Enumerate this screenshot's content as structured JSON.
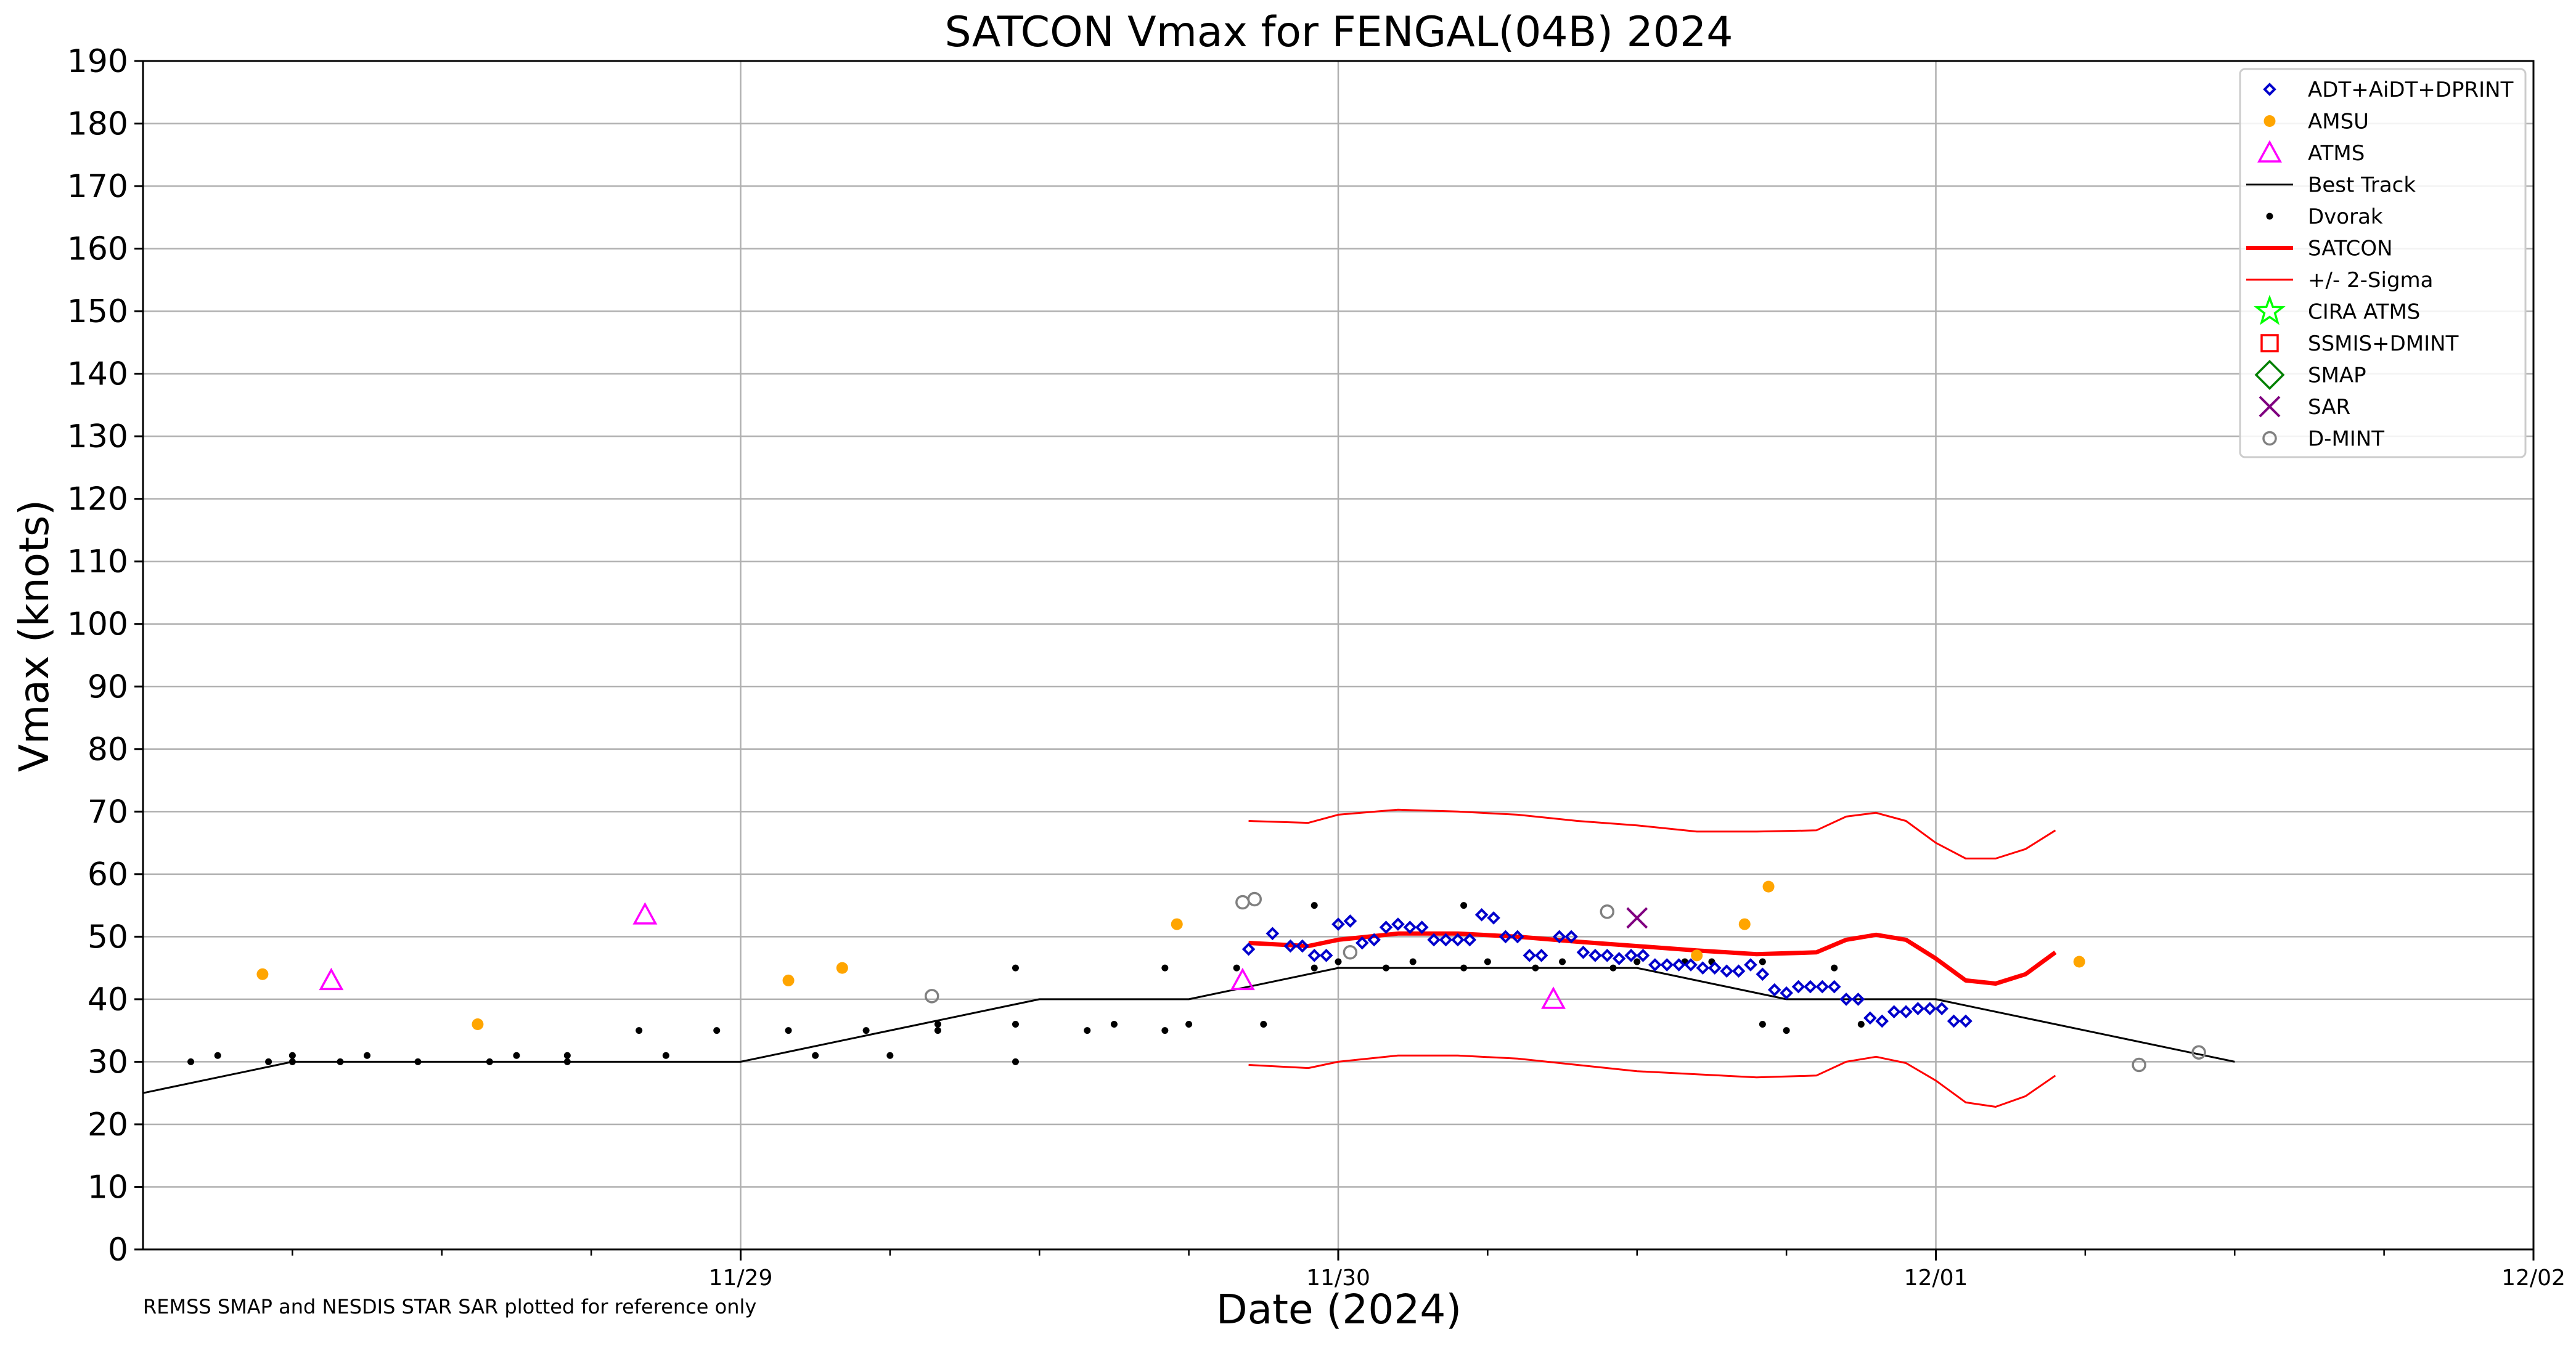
{
  "chart_data": {
    "type": "scatter",
    "title": "SATCON Vmax for FENGAL(04B) 2024",
    "xlabel": "Date (2024)",
    "ylabel": "Vmax (knots)",
    "footnote": "REMSS SMAP and NESDIS STAR SAR plotted for reference only",
    "x_unit": "days since 2024-11-28 00:00 UTC",
    "xlim": [
      0,
      4
    ],
    "ylim": [
      0,
      190
    ],
    "y_ticks": [
      0,
      10,
      20,
      30,
      40,
      50,
      60,
      70,
      80,
      90,
      100,
      110,
      120,
      130,
      140,
      150,
      160,
      170,
      180,
      190
    ],
    "y_tick_labels": [
      "0",
      "10",
      "20",
      "30",
      "40",
      "50",
      "60",
      "70",
      "80",
      "90",
      "100",
      "110",
      "120",
      "130",
      "140",
      "150",
      "160",
      "170",
      "180",
      "190"
    ],
    "x_major_ticks": [
      1,
      2,
      3,
      4
    ],
    "x_tick_labels": [
      "11/29",
      "11/30",
      "12/01",
      "12/02"
    ],
    "x_minor_ticks": [
      0.25,
      0.5,
      0.75,
      1.25,
      1.5,
      1.75,
      2.25,
      2.5,
      2.75,
      3.25,
      3.5,
      3.75
    ],
    "grid": true,
    "legend_position": "top-right",
    "legend": [
      {
        "label": "ADT+AiDT+DPRINT",
        "marker": "diamond-small",
        "color": "#0000cc"
      },
      {
        "label": "AMSU",
        "marker": "dot",
        "color": "#ffa500"
      },
      {
        "label": "ATMS",
        "marker": "triangle",
        "color": "#ff00ff"
      },
      {
        "label": "Best Track",
        "marker": "line",
        "color": "#000000"
      },
      {
        "label": "Dvorak",
        "marker": "dot-small",
        "color": "#000000"
      },
      {
        "label": "SATCON",
        "marker": "line-thick",
        "color": "#ff0000"
      },
      {
        "label": "+/- 2-Sigma",
        "marker": "line-thin",
        "color": "#ff0000"
      },
      {
        "label": "CIRA ATMS",
        "marker": "star",
        "color": "#00ff00"
      },
      {
        "label": "SSMIS+DMINT",
        "marker": "square",
        "color": "#ff0000"
      },
      {
        "label": "SMAP",
        "marker": "diamond-large",
        "color": "#008000"
      },
      {
        "label": "SAR",
        "marker": "x",
        "color": "#800080"
      },
      {
        "label": "D-MINT",
        "marker": "circle",
        "color": "#808080"
      }
    ],
    "series": [
      {
        "name": "Best Track",
        "type": "line",
        "color": "#000000",
        "points": [
          [
            0,
            25
          ],
          [
            0.25,
            30
          ],
          [
            1.0,
            30
          ],
          [
            1.5,
            40
          ],
          [
            1.75,
            40
          ],
          [
            2.0,
            45
          ],
          [
            2.5,
            45
          ],
          [
            2.75,
            40
          ],
          [
            3.0,
            40
          ],
          [
            3.5,
            30
          ]
        ]
      },
      {
        "name": "SATCON",
        "type": "line",
        "color": "#ff0000",
        "points": [
          [
            1.85,
            49
          ],
          [
            1.95,
            48.5
          ],
          [
            2.0,
            49.5
          ],
          [
            2.1,
            50.5
          ],
          [
            2.2,
            50.5
          ],
          [
            2.3,
            50
          ],
          [
            2.4,
            49.2
          ],
          [
            2.5,
            48.5
          ],
          [
            2.6,
            47.8
          ],
          [
            2.7,
            47.2
          ],
          [
            2.8,
            47.5
          ],
          [
            2.85,
            49.5
          ],
          [
            2.9,
            50.3
          ],
          [
            2.95,
            49.5
          ],
          [
            3.0,
            46.5
          ],
          [
            3.05,
            43
          ],
          [
            3.1,
            42.5
          ],
          [
            3.15,
            44
          ],
          [
            3.2,
            47.5
          ]
        ]
      },
      {
        "name": "+/- 2-Sigma (upper)",
        "type": "line",
        "color": "#ff0000",
        "points": [
          [
            1.85,
            68.5
          ],
          [
            1.95,
            68.2
          ],
          [
            2.0,
            69.5
          ],
          [
            2.1,
            70.3
          ],
          [
            2.2,
            70
          ],
          [
            2.3,
            69.5
          ],
          [
            2.4,
            68.5
          ],
          [
            2.5,
            67.8
          ],
          [
            2.6,
            66.8
          ],
          [
            2.7,
            66.8
          ],
          [
            2.8,
            67
          ],
          [
            2.85,
            69.2
          ],
          [
            2.9,
            69.8
          ],
          [
            2.95,
            68.5
          ],
          [
            3.0,
            65
          ],
          [
            3.05,
            62.5
          ],
          [
            3.1,
            62.5
          ],
          [
            3.15,
            64
          ],
          [
            3.2,
            67
          ]
        ]
      },
      {
        "name": "+/- 2-Sigma (lower)",
        "type": "line",
        "color": "#ff0000",
        "points": [
          [
            1.85,
            29.5
          ],
          [
            1.95,
            29
          ],
          [
            2.0,
            30
          ],
          [
            2.1,
            31
          ],
          [
            2.2,
            31
          ],
          [
            2.3,
            30.5
          ],
          [
            2.4,
            29.5
          ],
          [
            2.5,
            28.5
          ],
          [
            2.6,
            28
          ],
          [
            2.7,
            27.5
          ],
          [
            2.8,
            27.8
          ],
          [
            2.85,
            30
          ],
          [
            2.9,
            30.8
          ],
          [
            2.95,
            29.8
          ],
          [
            3.0,
            27
          ],
          [
            3.05,
            23.5
          ],
          [
            3.1,
            22.8
          ],
          [
            3.15,
            24.5
          ],
          [
            3.2,
            27.8
          ]
        ]
      },
      {
        "name": "Dvorak",
        "type": "scatter",
        "color": "#000000",
        "points": [
          [
            0.08,
            30
          ],
          [
            0.125,
            31
          ],
          [
            0.21,
            30
          ],
          [
            0.25,
            30
          ],
          [
            0.25,
            31
          ],
          [
            0.33,
            30
          ],
          [
            0.375,
            31
          ],
          [
            0.46,
            30
          ],
          [
            0.58,
            30
          ],
          [
            0.625,
            31
          ],
          [
            0.71,
            30
          ],
          [
            0.71,
            31
          ],
          [
            0.83,
            35
          ],
          [
            0.875,
            31
          ],
          [
            0.96,
            35
          ],
          [
            1.08,
            35
          ],
          [
            1.125,
            31
          ],
          [
            1.21,
            35
          ],
          [
            1.25,
            31
          ],
          [
            1.33,
            35
          ],
          [
            1.33,
            36
          ],
          [
            1.46,
            45
          ],
          [
            1.46,
            36
          ],
          [
            1.46,
            30
          ],
          [
            1.58,
            35
          ],
          [
            1.625,
            36
          ],
          [
            1.71,
            45
          ],
          [
            1.71,
            35
          ],
          [
            1.75,
            36
          ],
          [
            1.83,
            45
          ],
          [
            1.875,
            36
          ],
          [
            1.96,
            55
          ],
          [
            1.96,
            45
          ],
          [
            2.0,
            46
          ],
          [
            2.08,
            45
          ],
          [
            2.125,
            46
          ],
          [
            2.21,
            55
          ],
          [
            2.21,
            45
          ],
          [
            2.25,
            46
          ],
          [
            2.33,
            45
          ],
          [
            2.375,
            46
          ],
          [
            2.46,
            45
          ],
          [
            2.5,
            46
          ],
          [
            2.58,
            46
          ],
          [
            2.625,
            46
          ],
          [
            2.71,
            36
          ],
          [
            2.71,
            46
          ],
          [
            2.75,
            35
          ],
          [
            2.83,
            45
          ],
          [
            2.875,
            36
          ]
        ]
      },
      {
        "name": "ADT+AiDT+DPRINT",
        "type": "scatter",
        "color": "#0000cc",
        "points": [
          [
            1.85,
            48
          ],
          [
            1.89,
            50.5
          ],
          [
            1.92,
            48.5
          ],
          [
            1.94,
            48.5
          ],
          [
            1.96,
            47
          ],
          [
            1.98,
            47
          ],
          [
            2.0,
            52
          ],
          [
            2.02,
            52.5
          ],
          [
            2.04,
            49
          ],
          [
            2.06,
            49.5
          ],
          [
            2.08,
            51.5
          ],
          [
            2.1,
            52
          ],
          [
            2.12,
            51.5
          ],
          [
            2.14,
            51.5
          ],
          [
            2.16,
            49.5
          ],
          [
            2.18,
            49.5
          ],
          [
            2.2,
            49.5
          ],
          [
            2.22,
            49.5
          ],
          [
            2.24,
            53.5
          ],
          [
            2.26,
            53
          ],
          [
            2.28,
            50
          ],
          [
            2.3,
            50
          ],
          [
            2.32,
            47
          ],
          [
            2.34,
            47
          ],
          [
            2.37,
            50
          ],
          [
            2.39,
            50
          ],
          [
            2.41,
            47.5
          ],
          [
            2.43,
            47
          ],
          [
            2.45,
            47
          ],
          [
            2.47,
            46.5
          ],
          [
            2.49,
            47
          ],
          [
            2.51,
            47
          ],
          [
            2.53,
            45.5
          ],
          [
            2.55,
            45.5
          ],
          [
            2.57,
            45.5
          ],
          [
            2.59,
            45.5
          ],
          [
            2.61,
            45
          ],
          [
            2.63,
            45
          ],
          [
            2.65,
            44.5
          ],
          [
            2.67,
            44.5
          ],
          [
            2.69,
            45.5
          ],
          [
            2.71,
            44
          ],
          [
            2.73,
            41.5
          ],
          [
            2.75,
            41
          ],
          [
            2.77,
            42
          ],
          [
            2.79,
            42
          ],
          [
            2.81,
            42
          ],
          [
            2.83,
            42
          ],
          [
            2.85,
            40
          ],
          [
            2.87,
            40
          ],
          [
            2.89,
            37
          ],
          [
            2.91,
            36.5
          ],
          [
            2.93,
            38
          ],
          [
            2.95,
            38
          ],
          [
            2.97,
            38.5
          ],
          [
            2.99,
            38.5
          ],
          [
            3.01,
            38.5
          ],
          [
            3.03,
            36.5
          ],
          [
            3.05,
            36.5
          ]
        ]
      },
      {
        "name": "AMSU",
        "type": "scatter",
        "color": "#ffa500",
        "points": [
          [
            0.2,
            44
          ],
          [
            0.56,
            36
          ],
          [
            1.08,
            43
          ],
          [
            1.17,
            45
          ],
          [
            1.73,
            52
          ],
          [
            2.6,
            47
          ],
          [
            2.68,
            52
          ],
          [
            2.72,
            58
          ],
          [
            3.24,
            46
          ]
        ]
      },
      {
        "name": "ATMS",
        "type": "scatter",
        "color": "#ff00ff",
        "points": [
          [
            0.315,
            43
          ],
          [
            0.84,
            53.5
          ],
          [
            1.84,
            43
          ],
          [
            2.36,
            40
          ]
        ]
      },
      {
        "name": "D-MINT",
        "type": "scatter",
        "color": "#808080",
        "points": [
          [
            1.32,
            40.5
          ],
          [
            1.84,
            55.5
          ],
          [
            1.86,
            56
          ],
          [
            2.02,
            47.5
          ],
          [
            2.45,
            54
          ],
          [
            3.34,
            29.5
          ],
          [
            3.44,
            31.5
          ]
        ]
      },
      {
        "name": "SAR",
        "type": "scatter",
        "color": "#800080",
        "points": [
          [
            2.5,
            53
          ]
        ]
      }
    ]
  }
}
